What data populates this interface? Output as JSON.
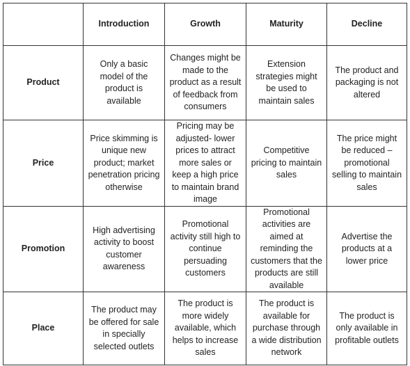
{
  "table": {
    "columns": [
      "",
      "Introduction",
      "Growth",
      "Maturity",
      "Decline"
    ],
    "rows": [
      {
        "label": "Product",
        "cells": [
          "Only a basic model of the product is available",
          "Changes might be made to the product as a result of feedback from consumers",
          "Extension strategies might be used to maintain sales",
          "The product and packaging is not altered"
        ]
      },
      {
        "label": "Price",
        "cells": [
          "Price skimming is unique new product; market penetration pricing otherwise",
          "Pricing may be adjusted- lower prices to attract more sales or keep a high price to maintain brand image",
          "Competitive pricing to maintain sales",
          "The price might be reduced – promotional selling to maintain sales"
        ]
      },
      {
        "label": "Promotion",
        "cells": [
          "High advertising activity to boost customer awareness",
          "Promotional activity still high to continue persuading customers",
          "Promotional activities are aimed at reminding the customers that the products are still available",
          "Advertise the products at a lower price"
        ]
      },
      {
        "label": "Place",
        "cells": [
          "The product may be offered for sale in specially selected outlets",
          "The product is more widely available, which helps to increase sales",
          "The product is available for purchase through a wide distribution network",
          "The product is only available in profitable outlets"
        ]
      }
    ]
  }
}
